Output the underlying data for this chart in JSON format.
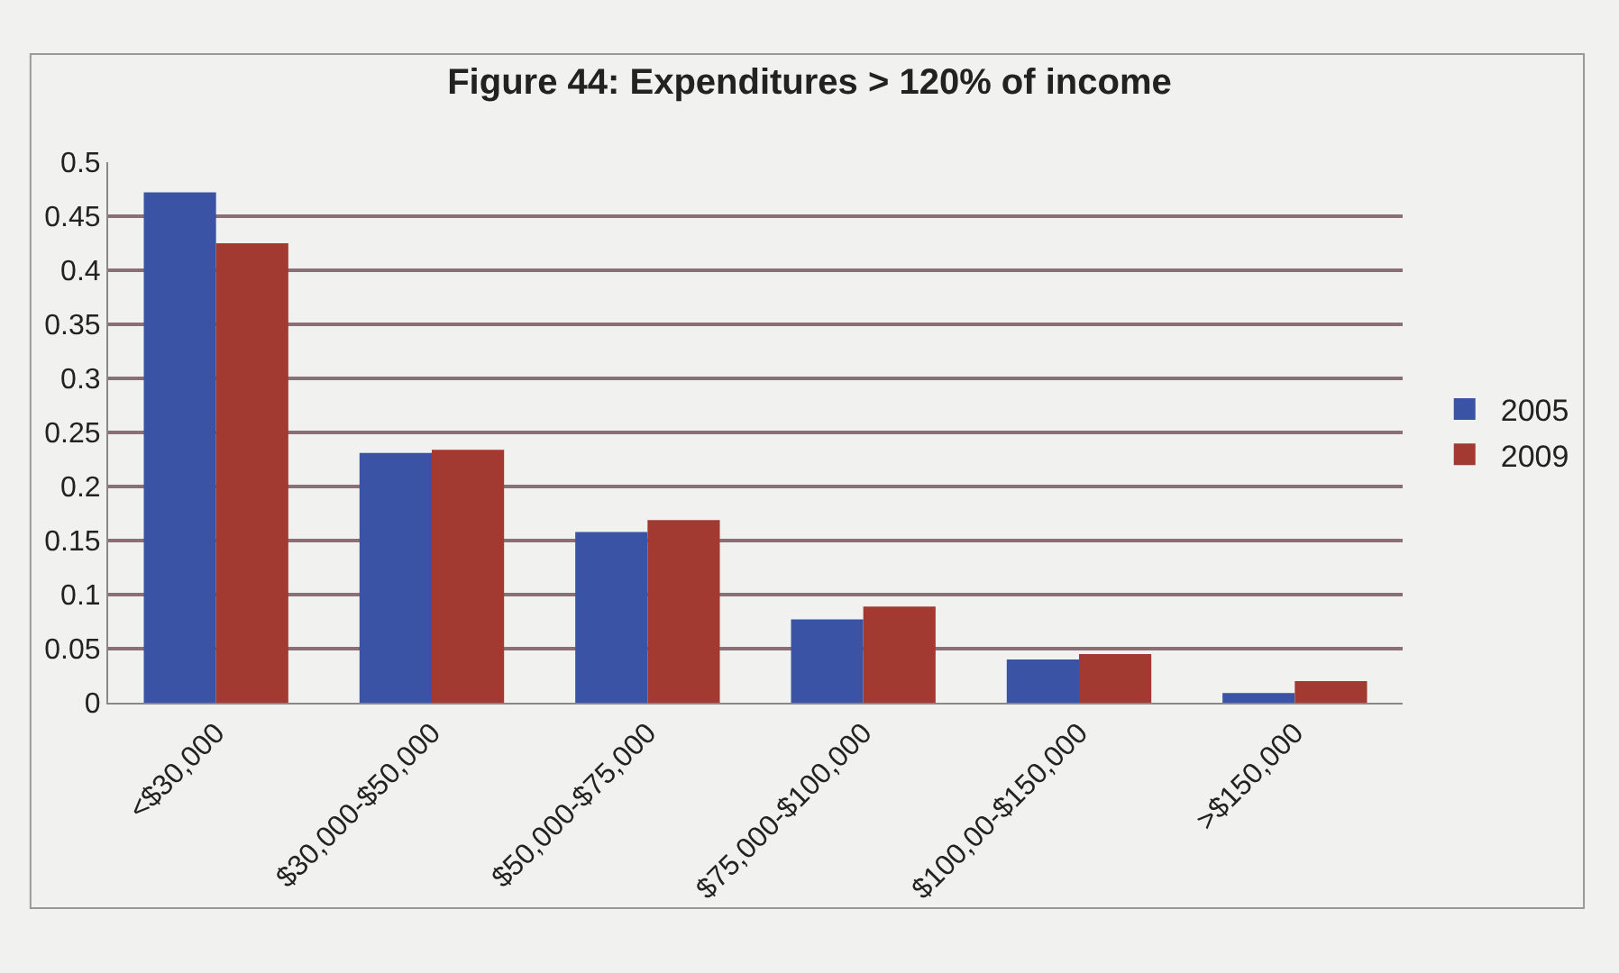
{
  "chart_data": {
    "type": "bar",
    "title": "Figure 44: Expenditures > 120% of income",
    "categories": [
      "<$30,000",
      "$30,000-$50,000",
      "$50,000-$75,000",
      "$75,000-$100,000",
      "$100,00-$150,000",
      ">$150,000"
    ],
    "series": [
      {
        "name": "2005",
        "color": "#3a53a4",
        "values": [
          0.472,
          0.231,
          0.158,
          0.077,
          0.04,
          0.009
        ]
      },
      {
        "name": "2009",
        "color": "#a33a32",
        "values": [
          0.425,
          0.234,
          0.169,
          0.089,
          0.045,
          0.02
        ]
      }
    ],
    "ylim": [
      0,
      0.5
    ],
    "yticks": [
      0,
      0.05,
      0.1,
      0.15,
      0.2,
      0.25,
      0.3,
      0.35,
      0.4,
      0.45,
      0.5
    ],
    "grid": "y",
    "legend": "right"
  }
}
